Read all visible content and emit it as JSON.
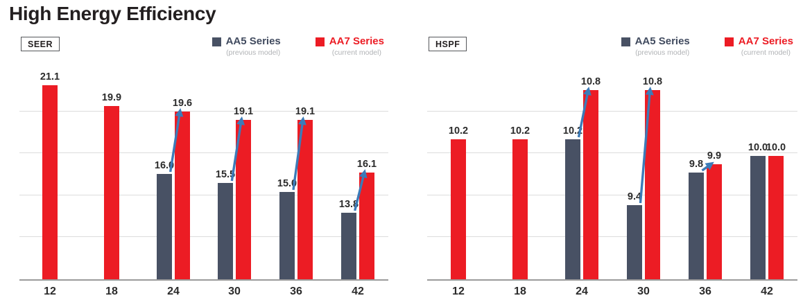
{
  "page": {
    "title": "High Energy Efficiency"
  },
  "colors": {
    "title_text": "#231f20",
    "metric_box_border": "#55565a",
    "aa5_bar": "#485164",
    "aa7_bar": "#ec1c24",
    "aa5_text": "#414b5f",
    "aa7_text": "#ec1c24",
    "subtitle_gray": "#b1b3b6",
    "arrow": "#3c7bb8",
    "gridline": "#dcdcdc",
    "baseline": "#9b9b9b",
    "value_label": "#2b2b2b",
    "axis_label": "#2b2b2b"
  },
  "chart_data": [
    {
      "type": "bar",
      "title": "SEER",
      "categories": [
        "12",
        "18",
        "24",
        "30",
        "36",
        "42"
      ],
      "series": [
        {
          "name": "AA5 Series",
          "subtitle": "(previous model)",
          "values": [
            null,
            null,
            16.0,
            15.5,
            15.0,
            13.8
          ]
        },
        {
          "name": "AA7 Series",
          "subtitle": "(current model)",
          "values": [
            21.1,
            19.9,
            19.6,
            19.1,
            19.1,
            16.1
          ]
        }
      ],
      "ylim": [
        10.0,
        22.0
      ],
      "grid": true,
      "legend_position": "top-right",
      "arrow_groups": [
        2,
        3,
        4,
        5
      ]
    },
    {
      "type": "bar",
      "title": "HSPF",
      "categories": [
        "12",
        "18",
        "24",
        "30",
        "36",
        "42"
      ],
      "series": [
        {
          "name": "AA5 Series",
          "subtitle": "(previous model)",
          "values": [
            null,
            null,
            10.2,
            9.4,
            9.8,
            10.0
          ]
        },
        {
          "name": "AA7 Series",
          "subtitle": "(current model)",
          "values": [
            10.2,
            10.2,
            10.8,
            10.8,
            9.9,
            10.0
          ]
        }
      ],
      "ylim": [
        8.5,
        11.05
      ],
      "grid": true,
      "legend_position": "top-right",
      "arrow_groups": [
        2,
        3,
        4
      ]
    }
  ]
}
